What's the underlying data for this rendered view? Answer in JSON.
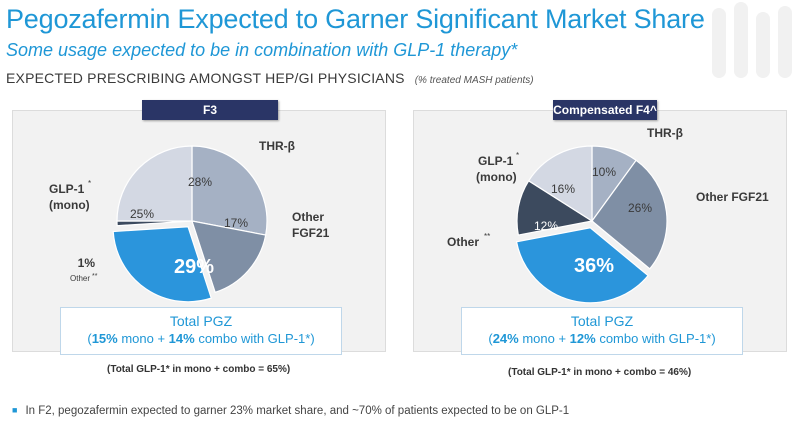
{
  "header": {
    "title": "Pegozafermin Expected to Garner Significant Market Share",
    "subtitle": "Some usage expected to be in combination with GLP-1 therapy*",
    "section_label": "EXPECTED PRESCRIBING AMONGST HEP/GI PHYSICIANS",
    "section_note": "(% treated MASH patients)"
  },
  "colors": {
    "pgz": "#2b95dc",
    "other": "#3c4a5e",
    "glp1": "#d3d8e3",
    "thr": "#a5b1c4",
    "fgf21": "#7f8fa5",
    "navy": "#2a3566",
    "blue_text": "#1f97d6"
  },
  "chart_data": [
    {
      "type": "pie",
      "title": "F3",
      "slices": [
        {
          "label": "THR-β",
          "value": 28,
          "display": "28%"
        },
        {
          "label": "Other FGF21",
          "value": 17,
          "display": "17%"
        },
        {
          "label": "PGZ",
          "value": 29,
          "display": "29%"
        },
        {
          "label": "Other",
          "value": 1,
          "display": "1%"
        },
        {
          "label": "GLP-1",
          "value": 25,
          "display": "25%"
        }
      ],
      "labels": {
        "thr": "THR-β",
        "fgf21_line1": "Other",
        "fgf21_line2": "FGF21",
        "glp1_line1": "GLP-1",
        "glp1_line2": "(mono)",
        "glp1_sup": "*",
        "other_value": "1%",
        "other_label": "Other",
        "other_sup": "**"
      },
      "total": {
        "title": "Total PGZ",
        "mono": "15%",
        "mono_suffix": " mono + ",
        "combo": "14%",
        "combo_suffix": " combo with GLP-1*",
        "open": "(",
        "close": ")"
      },
      "footnote": "(Total GLP-1* in mono + combo = 65%)"
    },
    {
      "type": "pie",
      "title": "Compensated F4^",
      "slices": [
        {
          "label": "THR-β",
          "value": 10,
          "display": "10%"
        },
        {
          "label": "Other FGF21",
          "value": 26,
          "display": "26%"
        },
        {
          "label": "PGZ",
          "value": 36,
          "display": "36%"
        },
        {
          "label": "Other",
          "value": 12,
          "display": "12%"
        },
        {
          "label": "GLP-1",
          "value": 16,
          "display": "16%"
        }
      ],
      "labels": {
        "thr": "THR-β",
        "fgf21": "Other FGF21",
        "glp1_line1": "GLP-1",
        "glp1_line2": "(mono)",
        "glp1_sup": "*",
        "other_label": "Other",
        "other_sup": "**"
      },
      "total": {
        "title": "Total PGZ",
        "mono": "24%",
        "mono_suffix": " mono + ",
        "combo": "12%",
        "combo_suffix": " combo with GLP-1*",
        "open": "(",
        "close": ")"
      },
      "footnote": "(Total GLP-1* in mono + combo = 46%)"
    }
  ],
  "bullet": "In F2, pegozafermin expected to garner 23% market share, and ~70% of patients expected to be on GLP-1"
}
